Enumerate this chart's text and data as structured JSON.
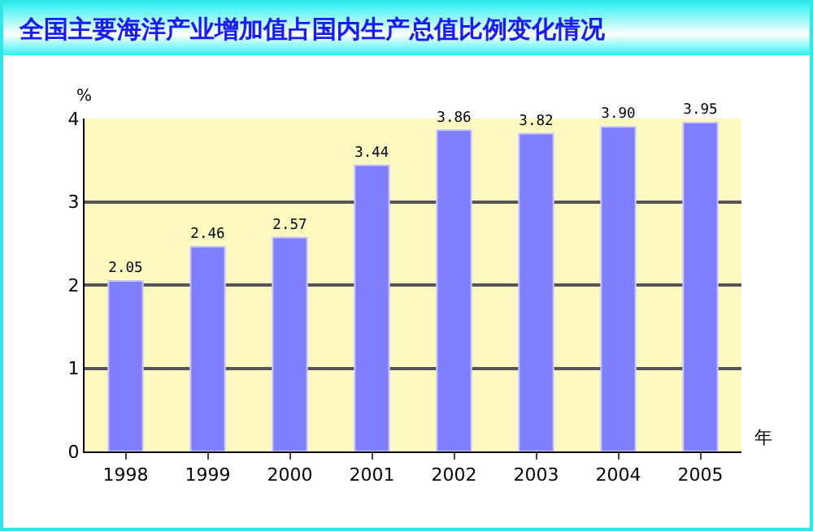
{
  "chart_data": {
    "type": "bar",
    "title": "全国主要海洋产业增加值占国内生产总值比例变化情况",
    "ylabel": "%",
    "xlabel": "年",
    "categories": [
      "1998",
      "1999",
      "2000",
      "2001",
      "2002",
      "2003",
      "2004",
      "2005"
    ],
    "values": [
      2.05,
      2.46,
      2.57,
      3.44,
      3.86,
      3.82,
      3.9,
      3.95
    ],
    "value_labels": [
      "2.05",
      "2.46",
      "2.57",
      "3.44",
      "3.86",
      "3.82",
      "3.90",
      "3.95"
    ],
    "color": "#8080ff",
    "ylim": [
      0,
      4
    ],
    "yticks": [
      0,
      1,
      2,
      3,
      4
    ],
    "grid": "y",
    "legend": false
  }
}
